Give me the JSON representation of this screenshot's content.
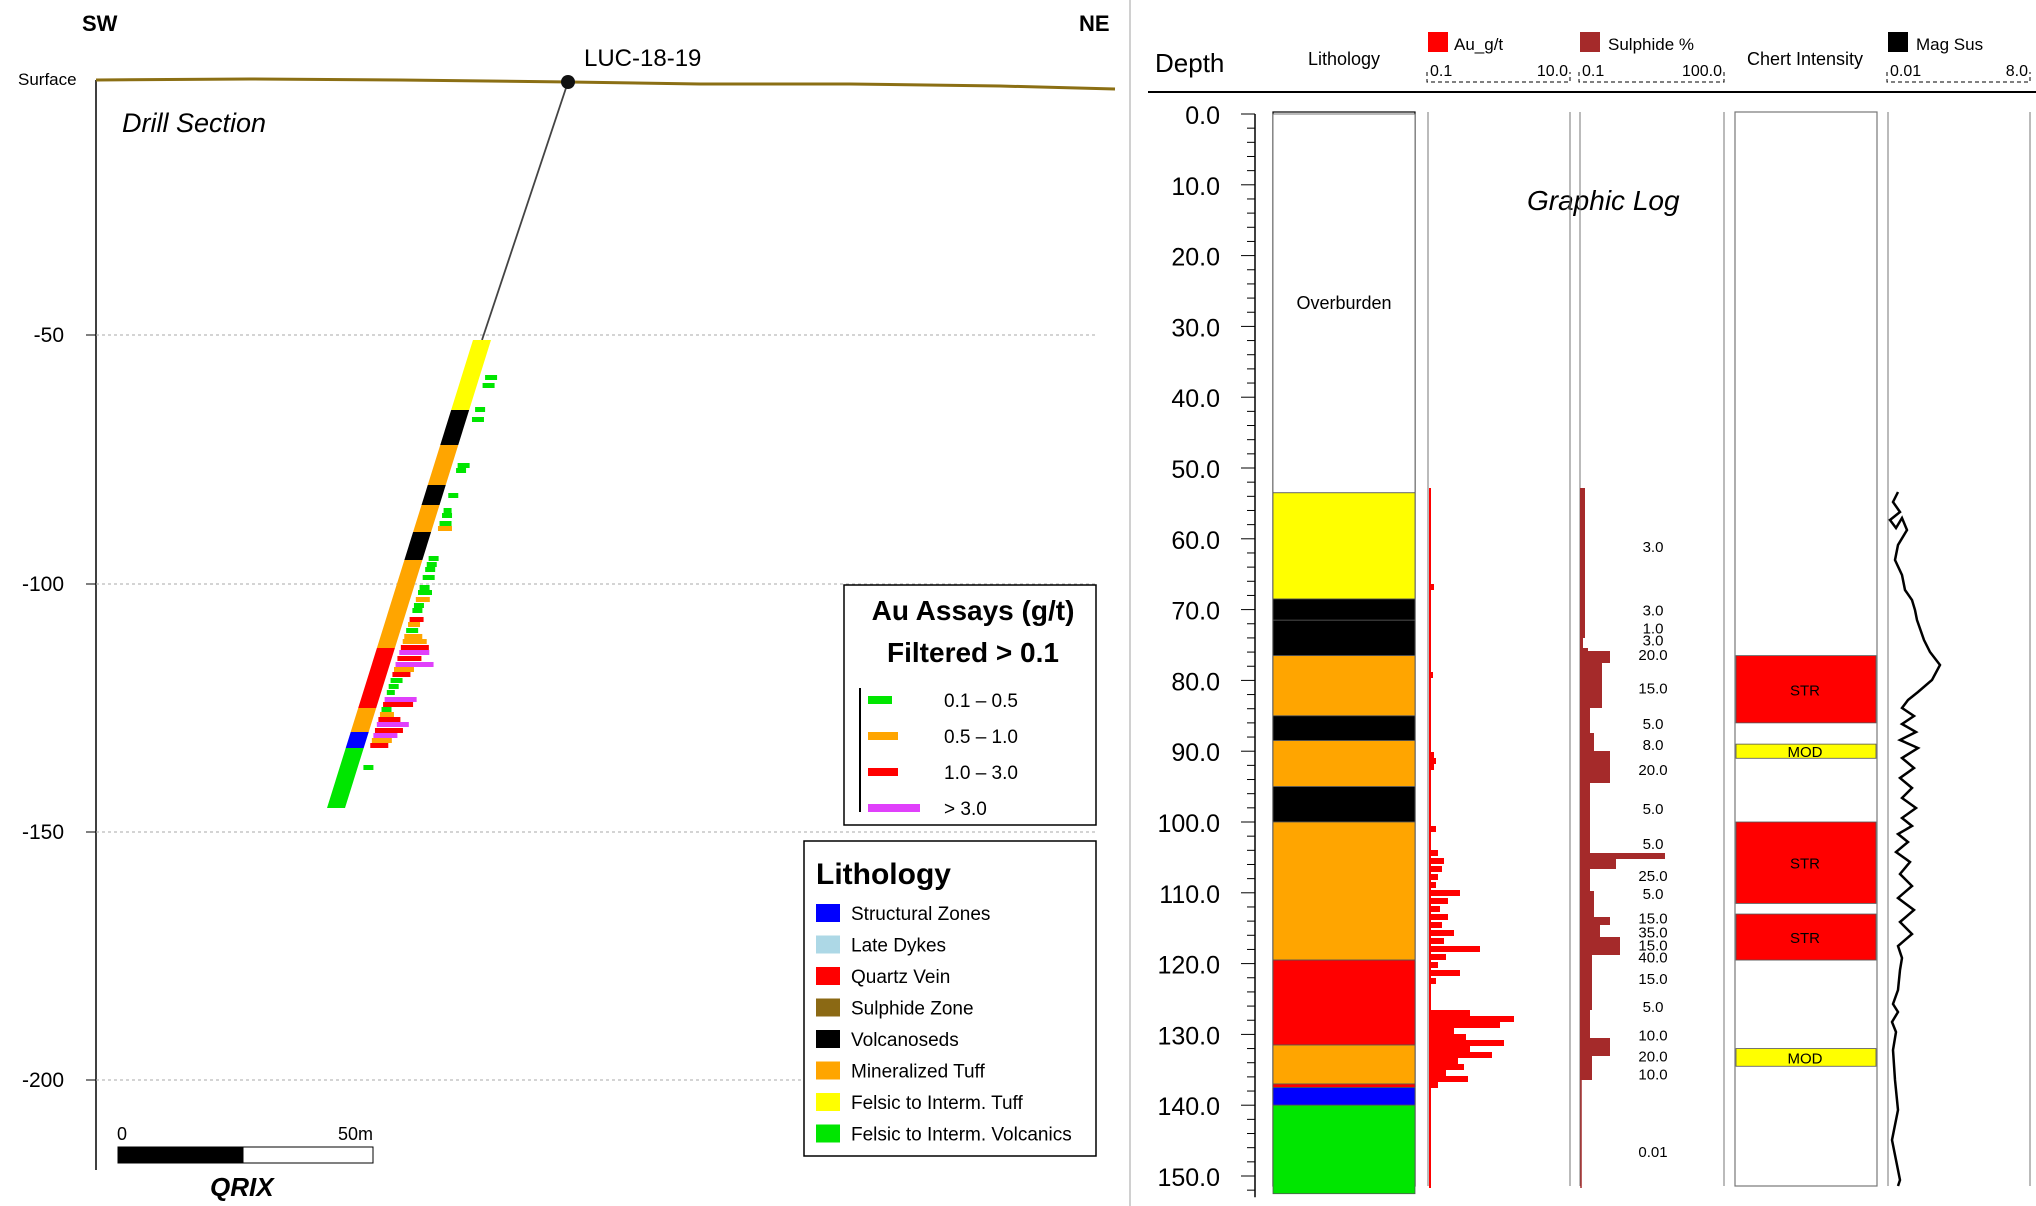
{
  "section": {
    "sw": "SW",
    "ne": "NE",
    "surface": "Surface",
    "title": "Drill Section",
    "hole_label": "LUC-18-19",
    "elev_ticks": [
      "-50",
      "-100",
      "-150",
      "-200"
    ],
    "scale_start": "0",
    "scale_end": "50m",
    "logo": "QRIX"
  },
  "assay_legend": {
    "title1": "Au Assays (g/t)",
    "title2": "Filtered > 0.1",
    "items": [
      {
        "label": "0.1 – 0.5",
        "color": "#00e600"
      },
      {
        "label": "0.5 – 1.0",
        "color": "#ffa500"
      },
      {
        "label": "1.0 – 3.0",
        "color": "#ff0000"
      },
      {
        "label": "> 3.0",
        "color": "#e040fb"
      }
    ]
  },
  "lith_legend": {
    "title": "Lithology",
    "items": [
      {
        "label": "Structural Zones",
        "color": "#0000ff"
      },
      {
        "label": "Late Dykes",
        "color": "#add8e6"
      },
      {
        "label": "Quartz Vein",
        "color": "#ff0000"
      },
      {
        "label": "Sulphide Zone",
        "color": "#8b6914"
      },
      {
        "label": "Volcanoseds",
        "color": "#000000"
      },
      {
        "label": "Mineralized Tuff",
        "color": "#ffa500"
      },
      {
        "label": "Felsic to Interm. Tuff",
        "color": "#ffff00"
      },
      {
        "label": "Felsic to Interm. Volcanics",
        "color": "#00e600"
      }
    ]
  },
  "log": {
    "title": "Graphic Log",
    "headers": {
      "depth": "Depth",
      "lithology": "Lithology",
      "au": "Au_g/t",
      "au_min": "0.1",
      "au_max": "10.0",
      "sulphide": "Sulphide %",
      "sul_min": "0.1",
      "sul_max": "100.0",
      "chert": "Chert Intensity",
      "magsus": "Mag Sus",
      "mag_min": "0.01",
      "mag_max": "8.0"
    },
    "depth_ticks": [
      "0.0",
      "10.0",
      "20.0",
      "30.0",
      "40.0",
      "50.0",
      "60.0",
      "70.0",
      "80.0",
      "90.0",
      "100.0",
      "110.0",
      "120.0",
      "130.0",
      "140.0",
      "150.0"
    ],
    "overburden_label": "Overburden",
    "colors": {
      "au": "#ff0000",
      "sulphide": "#a52a2a",
      "magsus": "#000000"
    },
    "lithology_intervals": [
      {
        "from": 0,
        "to": 53.5,
        "color": "#ffffff"
      },
      {
        "from": 53.5,
        "to": 68.5,
        "color": "#ffff00"
      },
      {
        "from": 68.5,
        "to": 71.5,
        "color": "#000000"
      },
      {
        "from": 71.5,
        "to": 76.5,
        "color": "#000000"
      },
      {
        "from": 76.5,
        "to": 85,
        "color": "#ffa500"
      },
      {
        "from": 85,
        "to": 88.5,
        "color": "#000000"
      },
      {
        "from": 88.5,
        "to": 95,
        "color": "#ffa500"
      },
      {
        "from": 95,
        "to": 100,
        "color": "#000000"
      },
      {
        "from": 100,
        "to": 119.5,
        "color": "#ffa500"
      },
      {
        "from": 119.5,
        "to": 131.5,
        "color": "#ff0000"
      },
      {
        "from": 131.5,
        "to": 137,
        "color": "#ffa500"
      },
      {
        "from": 137,
        "to": 137.5,
        "color": "#ff0000"
      },
      {
        "from": 137.5,
        "to": 140,
        "color": "#0000ff"
      },
      {
        "from": 140,
        "to": 152.5,
        "color": "#00e600"
      }
    ],
    "sulphide_labels": [
      {
        "depth": 61,
        "text": "3.0"
      },
      {
        "depth": 70,
        "text": "3.0"
      },
      {
        "depth": 72.5,
        "text": "1.0"
      },
      {
        "depth": 74.2,
        "text": "3.0"
      },
      {
        "depth": 76.3,
        "text": "20.0"
      },
      {
        "depth": 81,
        "text": "15.0"
      },
      {
        "depth": 86,
        "text": "5.0"
      },
      {
        "depth": 89,
        "text": "8.0"
      },
      {
        "depth": 92.5,
        "text": "20.0"
      },
      {
        "depth": 98,
        "text": "5.0"
      },
      {
        "depth": 103,
        "text": "5.0"
      },
      {
        "depth": 107.5,
        "text": "25.0"
      },
      {
        "depth": 110,
        "text": "5.0"
      },
      {
        "depth": 113.5,
        "text": "15.0"
      },
      {
        "depth": 115.5,
        "text": "35.0"
      },
      {
        "depth": 117.3,
        "text": "15.0"
      },
      {
        "depth": 119,
        "text": "40.0"
      },
      {
        "depth": 122,
        "text": "15.0"
      },
      {
        "depth": 126,
        "text": "5.0"
      },
      {
        "depth": 130,
        "text": "10.0"
      },
      {
        "depth": 133,
        "text": "20.0"
      },
      {
        "depth": 135.5,
        "text": "10.0"
      },
      {
        "depth": 146.5,
        "text": "0.01"
      }
    ],
    "chert_intervals": [
      {
        "from": 76.5,
        "to": 86,
        "label": "STR",
        "color": "#ff0000"
      },
      {
        "from": 89,
        "to": 91,
        "label": "MOD",
        "color": "#ffff00"
      },
      {
        "from": 100,
        "to": 111.5,
        "label": "STR",
        "color": "#ff0000"
      },
      {
        "from": 113,
        "to": 119.5,
        "label": "STR",
        "color": "#ff0000"
      },
      {
        "from": 132,
        "to": 134.5,
        "label": "MOD",
        "color": "#ffff00"
      }
    ]
  }
}
